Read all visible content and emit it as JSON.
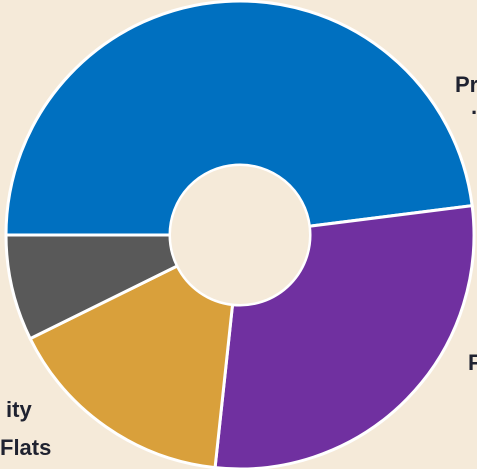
{
  "chart_data": {
    "type": "pie",
    "donut": true,
    "slices": [
      {
        "label": "Pr",
        "value": 48.0,
        "color": "#0070c0"
      },
      {
        "label": "F",
        "value": 28.7,
        "color": "#7030a0"
      },
      {
        "label": "ity\nFlats",
        "value": 16.0,
        "color": "#d9a03b"
      },
      {
        "label": "",
        "value": 7.3,
        "color": "#595959"
      }
    ],
    "start_angle_deg": 180
  },
  "labels": {
    "top_right": "Pr",
    "top_right_dot": "·",
    "right": "F",
    "left_line1": "ity",
    "left_line2": "Flats"
  },
  "colors": {
    "background": "#f5ead9",
    "separator": "#ffffff"
  }
}
